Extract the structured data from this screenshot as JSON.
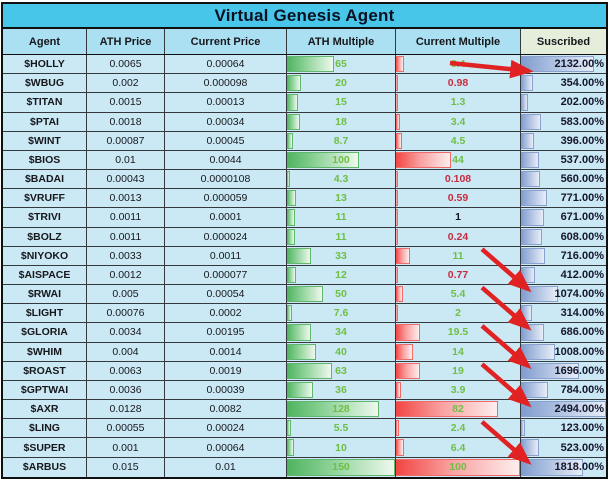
{
  "title": "Virtual Genesis Agent",
  "chart_data": {
    "type": "table",
    "title": "Virtual Genesis Agent",
    "columns": [
      "Agent",
      "ATH Price",
      "Current Price",
      "ATH Multiple",
      "Current Multiple",
      "Suscribed"
    ],
    "rows": [
      {
        "agent": "$HOLLY",
        "ath_price": "0.0065",
        "current_price": "0.00064",
        "ath_multiple": "65",
        "current_multiple": "6.4",
        "subscribed": "2132.00%"
      },
      {
        "agent": "$WBUG",
        "ath_price": "0.002",
        "current_price": "0.000098",
        "ath_multiple": "20",
        "current_multiple": "0.98",
        "subscribed": "354.00%"
      },
      {
        "agent": "$TITAN",
        "ath_price": "0.0015",
        "current_price": "0.00013",
        "ath_multiple": "15",
        "current_multiple": "1.3",
        "subscribed": "202.00%"
      },
      {
        "agent": "$PTAI",
        "ath_price": "0.0018",
        "current_price": "0.00034",
        "ath_multiple": "18",
        "current_multiple": "3.4",
        "subscribed": "583.00%"
      },
      {
        "agent": "$WINT",
        "ath_price": "0.00087",
        "current_price": "0.00045",
        "ath_multiple": "8.7",
        "current_multiple": "4.5",
        "subscribed": "396.00%"
      },
      {
        "agent": "$BIOS",
        "ath_price": "0.01",
        "current_price": "0.0044",
        "ath_multiple": "100",
        "current_multiple": "44",
        "subscribed": "537.00%"
      },
      {
        "agent": "$BADAI",
        "ath_price": "0.00043",
        "current_price": "0.0000108",
        "ath_multiple": "4.3",
        "current_multiple": "0.108",
        "subscribed": "560.00%"
      },
      {
        "agent": "$VRUFF",
        "ath_price": "0.0013",
        "current_price": "0.000059",
        "ath_multiple": "13",
        "current_multiple": "0.59",
        "subscribed": "771.00%"
      },
      {
        "agent": "$TRIVI",
        "ath_price": "0.0011",
        "current_price": "0.0001",
        "ath_multiple": "11",
        "current_multiple": "1",
        "subscribed": "671.00%"
      },
      {
        "agent": "$BOLZ",
        "ath_price": "0.0011",
        "current_price": "0.000024",
        "ath_multiple": "11",
        "current_multiple": "0.24",
        "subscribed": "608.00%"
      },
      {
        "agent": "$NIYOKO",
        "ath_price": "0.0033",
        "current_price": "0.0011",
        "ath_multiple": "33",
        "current_multiple": "11",
        "subscribed": "716.00%"
      },
      {
        "agent": "$AISPACE",
        "ath_price": "0.0012",
        "current_price": "0.000077",
        "ath_multiple": "12",
        "current_multiple": "0.77",
        "subscribed": "412.00%"
      },
      {
        "agent": "$RWAI",
        "ath_price": "0.005",
        "current_price": "0.00054",
        "ath_multiple": "50",
        "current_multiple": "5.4",
        "subscribed": "1074.00%"
      },
      {
        "agent": "$LIGHT",
        "ath_price": "0.00076",
        "current_price": "0.0002",
        "ath_multiple": "7.6",
        "current_multiple": "2",
        "subscribed": "314.00%"
      },
      {
        "agent": "$GLORIA",
        "ath_price": "0.0034",
        "current_price": "0.00195",
        "ath_multiple": "34",
        "current_multiple": "19.5",
        "subscribed": "686.00%"
      },
      {
        "agent": "$WHIM",
        "ath_price": "0.004",
        "current_price": "0.0014",
        "ath_multiple": "40",
        "current_multiple": "14",
        "subscribed": "1008.00%"
      },
      {
        "agent": "$ROAST",
        "ath_price": "0.0063",
        "current_price": "0.0019",
        "ath_multiple": "63",
        "current_multiple": "19",
        "subscribed": "1696.00%"
      },
      {
        "agent": "$GPTWAI",
        "ath_price": "0.0036",
        "current_price": "0.00039",
        "ath_multiple": "36",
        "current_multiple": "3.9",
        "subscribed": "784.00%"
      },
      {
        "agent": "$AXR",
        "ath_price": "0.0128",
        "current_price": "0.0082",
        "ath_multiple": "128",
        "current_multiple": "82",
        "subscribed": "2494.00%"
      },
      {
        "agent": "$LING",
        "ath_price": "0.00055",
        "current_price": "0.00024",
        "ath_multiple": "5.5",
        "current_multiple": "2.4",
        "subscribed": "123.00%"
      },
      {
        "agent": "$SUPER",
        "ath_price": "0.001",
        "current_price": "0.00064",
        "ath_multiple": "10",
        "current_multiple": "6.4",
        "subscribed": "523.00%"
      },
      {
        "agent": "$ARBUS",
        "ath_price": "0.015",
        "current_price": "0.01",
        "ath_multiple": "150",
        "current_multiple": "100",
        "subscribed": "1818.00%"
      }
    ],
    "bar_scales": {
      "ath_multiple_max": 150,
      "current_multiple_max": 100,
      "subscribed_max_pct": 2494
    },
    "value_color_rule": "current_multiple: red if < 1, black if = 1, green if > 1; ath_multiple always green",
    "legend_position": "none",
    "grid": true
  },
  "colors": {
    "title_bg": "#47c6ea",
    "header_bg": "#abdff2",
    "subscribed_header_bg": "#e5eedb",
    "row_bg": "#cbe8f5",
    "green_bar": "#4eb35f",
    "red_bar": "#f14543",
    "blue_bar": "#7f9cce",
    "green_text": "#6fbf44",
    "red_text": "#c92b3e",
    "arrow": "#e02222"
  },
  "annotations": {
    "arrow_rows": [
      "$HOLLY",
      "$RWAI",
      "$GLORIA",
      "$ROAST",
      "$AXR",
      "$ARBUS"
    ]
  }
}
